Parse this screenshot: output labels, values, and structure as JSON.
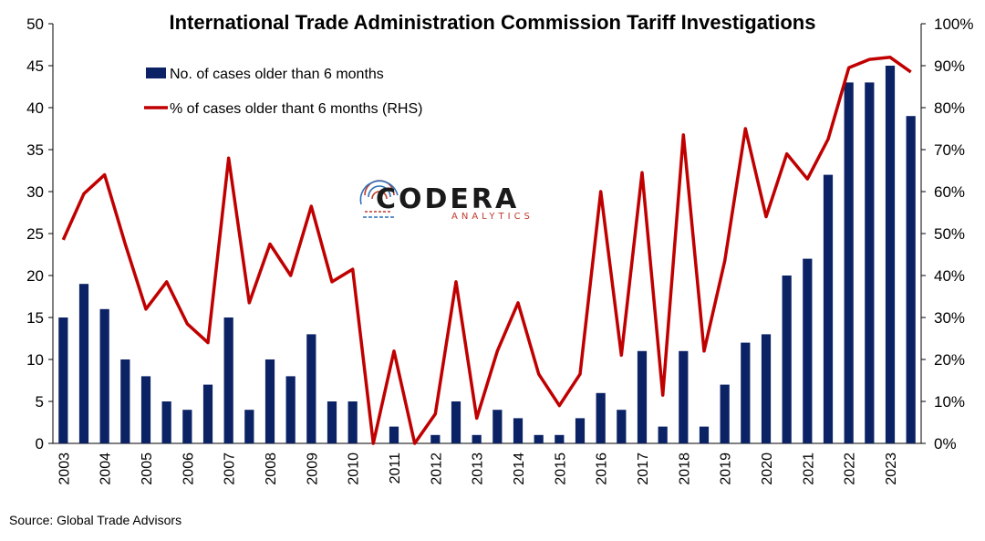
{
  "chart_data": {
    "type": "bar",
    "title": "International Trade Administration Commission Tariff Investigations",
    "source": "Source: Global Trade Advisors",
    "logo": {
      "name": "CODERA",
      "tagline": "ANALYTICS",
      "icon": "fingerprint-icon"
    },
    "legend": {
      "placement": "top-left"
    },
    "y_left": {
      "min": 0,
      "max": 50,
      "ticks": [
        "0",
        "5",
        "10",
        "15",
        "20",
        "25",
        "30",
        "35",
        "40",
        "45",
        "50"
      ]
    },
    "y_right": {
      "min": 0,
      "max": 100,
      "ticks": [
        "0%",
        "10%",
        "20%",
        "30%",
        "40%",
        "50%",
        "60%",
        "70%",
        "80%",
        "90%",
        "100%"
      ]
    },
    "x_tick_labels": [
      "2003",
      "2004",
      "2005",
      "2006",
      "2007",
      "2008",
      "2009",
      "2010",
      "2011",
      "2012",
      "2013",
      "2014",
      "2015",
      "2016",
      "2017",
      "2018",
      "2019",
      "2020",
      "2021",
      "2022",
      "2023"
    ],
    "series": [
      {
        "name": "No. of cases older than 6 months",
        "type": "bar",
        "axis": "left",
        "color": "#0b2265",
        "values": [
          15,
          19,
          16,
          10,
          8,
          5,
          4,
          7,
          15,
          4,
          10,
          8,
          13,
          5,
          5,
          0,
          2,
          0,
          1,
          5,
          1,
          4,
          3,
          1,
          1,
          3,
          6,
          4,
          11,
          2,
          11,
          2,
          7,
          12,
          13,
          20,
          22,
          32,
          43,
          43,
          45,
          39
        ]
      },
      {
        "name": "% of cases older thant 6 months (RHS)",
        "type": "line",
        "axis": "right",
        "color": "#c00000",
        "values": [
          48.5,
          59.5,
          64,
          47.5,
          32,
          38.5,
          28.5,
          24,
          68,
          33.5,
          47.5,
          40,
          56.5,
          38.5,
          41.5,
          0,
          22,
          0,
          7,
          38.5,
          6,
          22,
          33.5,
          16.5,
          9,
          16.5,
          60,
          21,
          64.5,
          11.5,
          73.5,
          22,
          43.5,
          75,
          54,
          69,
          63,
          72.5,
          89.5,
          91.5,
          92,
          88.5
        ]
      }
    ]
  }
}
